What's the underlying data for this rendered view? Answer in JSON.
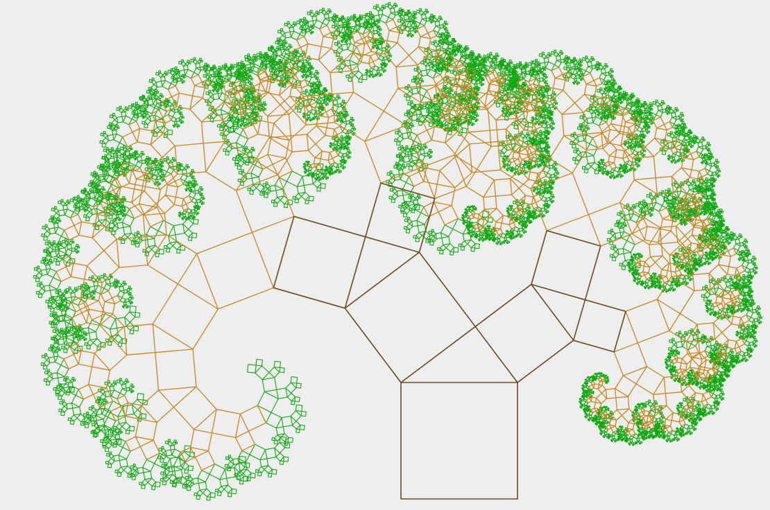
{
  "figure": {
    "kind": "pythagoras-tree-fractal",
    "background_color": "#eeeeee",
    "colors": {
      "trunk": "#6b4a1a",
      "branch": "#c8861e",
      "leaf": "#10a810"
    },
    "branch_angle_degrees": 37,
    "recursion_depth": 12
  }
}
